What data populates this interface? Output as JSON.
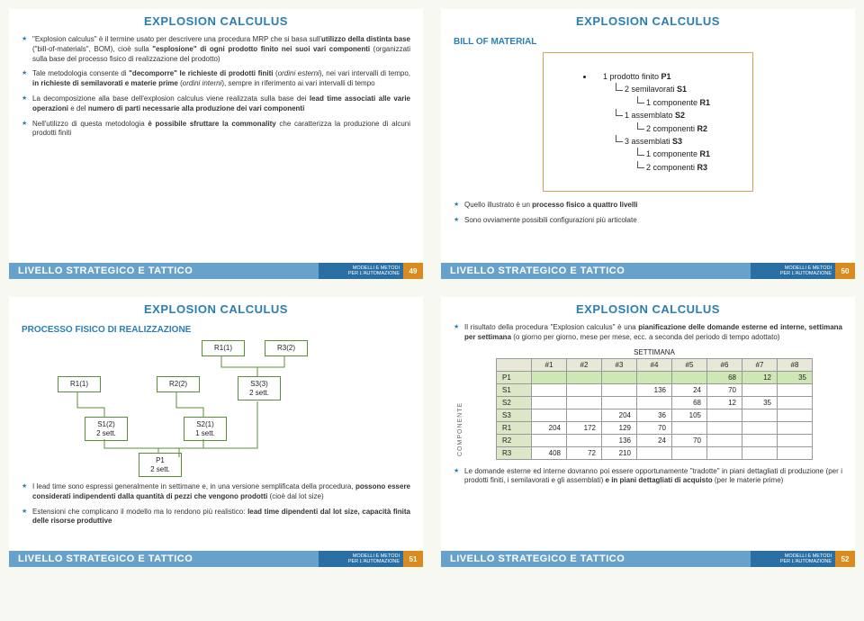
{
  "slides": {
    "s1": {
      "title": "EXPLOSION CALCULUS",
      "bullets": [
        "\"Explosion calculus\" è il termine usato per descrivere una procedura MRP che si basa sull'<b>utilizzo della distinta base</b> (\"bill-of-materials\", BOM), cioè sulla <b>\"esplosione\" di ogni prodotto finito nei suoi vari componenti</b> (organizzati sulla base del processo fisico di realizzazione del prodotto)",
        "Tale metodologia consente di <b>\"decomporre\" le richieste di prodotti finiti</b> (<i>ordini esterni</i>), nei vari intervalli di tempo, <b>in richieste di semilavorati e materie prime</b> (<i>ordini interni</i>), sempre in riferimento ai vari intervalli di tempo",
        "La decomposizione alla base dell'explosion calculus viene realizzata sulla base dei <b>lead time associati alle varie operazioni</b> e del <b>numero di parti necessarie alla produzione dei vari componenti</b>",
        "Nell'utilizzo di questa metodologia <b>è possibile sfruttare la commonality</b> che caratterizza la produzione di alcuni prodotti finiti"
      ],
      "page": "49"
    },
    "s2": {
      "title": "EXPLOSION CALCULUS",
      "sub": "BILL OF MATERIAL",
      "tree_html": "<li>1 prodotto finito <b>P1</b><ul><li>2 semilavorati <b>S1</b><ul><li>1 componente <b>R1</b></li></ul></li><li>1 assemblato <b>S2</b><ul><li>2 componenti <b>R2</b></li></ul></li><li>3 assemblati <b>S3</b><ul><li>1 componente <b>R1</b></li><li>2 componenti <b>R3</b></li></ul></li></ul></li>",
      "bullets": [
        "Quello illustrato è un <b>processo fisico a quattro livelli</b>",
        "Sono ovviamente possibili configurazioni più articolate"
      ],
      "page": "50"
    },
    "s3": {
      "title": "EXPLOSION CALCULUS",
      "sub": "PROCESSO FISICO DI REALIZZAZIONE",
      "nodes": {
        "r1top": "R1(1)",
        "r3top": "R3(2)",
        "r1left": "R1(1)",
        "r2": "R2(2)",
        "s3": "S3(3)<br>2 sett.",
        "s1": "S1(2)<br>2 sett.",
        "s2": "S2(1)<br>1 sett.",
        "p1": "P1<br>2 sett."
      },
      "bullets": [
        "I lead time sono espressi generalmente in settimane e, in una versione semplificata della procedura, <b>possono essere considerati indipendenti dalla quantità di pezzi che vengono prodotti</b> (cioè dal lot size)",
        "Estensioni che complicano il modello ma lo rendono più realistico: <b>lead time dipendenti dal lot size, capacità finita delle risorse produttive</b>"
      ],
      "page": "51"
    },
    "s4": {
      "title": "EXPLOSION CALCULUS",
      "intro": "Il risultato della procedura \"Explosion calculus\" è una <b>pianificazione delle domande esterne ed interne, settimana per settimana</b> (o giorno per giorno, mese per mese, ecc. a seconda del periodo di tempo adottato)",
      "settimana_label": "SETTIMANA",
      "componente_label": "COMPONENTE",
      "table": {
        "cols": [
          "#1",
          "#2",
          "#3",
          "#4",
          "#5",
          "#6",
          "#7",
          "#8"
        ],
        "rows": [
          {
            "h": "P1",
            "cls": "p1",
            "v": [
              "",
              "",
              "",
              "",
              "",
              "68",
              "12",
              "35"
            ]
          },
          {
            "h": "S1",
            "v": [
              "",
              "",
              "",
              "136",
              "24",
              "70",
              "",
              ""
            ]
          },
          {
            "h": "S2",
            "v": [
              "",
              "",
              "",
              "",
              "68",
              "12",
              "35",
              ""
            ]
          },
          {
            "h": "S3",
            "v": [
              "",
              "",
              "204",
              "36",
              "105",
              "",
              "",
              ""
            ]
          },
          {
            "h": "R1",
            "v": [
              "204",
              "172",
              "129",
              "70",
              "",
              "",
              "",
              ""
            ]
          },
          {
            "h": "R2",
            "v": [
              "",
              "",
              "136",
              "24",
              "70",
              "",
              "",
              ""
            ]
          },
          {
            "h": "R3",
            "v": [
              "408",
              "72",
              "210",
              "",
              "",
              "",
              "",
              ""
            ]
          }
        ]
      },
      "bullets": [
        "Le domande esterne ed interne dovranno poi essere opportunamente \"tradotte\" in piani dettagliati di produzione (per i prodotti finiti, i semilavorati e gli assemblati) <b>e in piani dettagliati di acquisto</b> (per le materie prime)"
      ],
      "page": "52"
    },
    "footer_left": "LIVELLO STRATEGICO E TATTICO",
    "footer_right1": "MODELLI E METODI",
    "footer_right2": "PER L'AUTOMAZIONE"
  }
}
